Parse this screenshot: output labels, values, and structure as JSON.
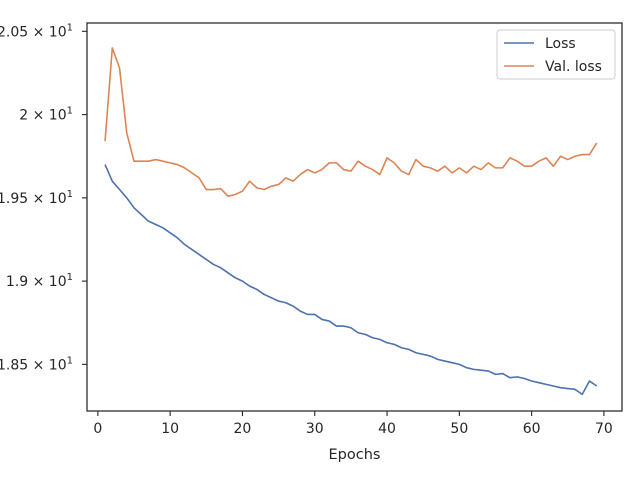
{
  "chart_data": {
    "type": "line",
    "title": "",
    "xlabel": "Epochs",
    "ylabel": "",
    "xlim": [
      -1.5,
      72.5
    ],
    "ylim": [
      18.22,
      20.55
    ],
    "x_ticks": [
      0,
      10,
      20,
      30,
      40,
      50,
      60,
      70
    ],
    "x_tick_labels": [
      "0",
      "10",
      "20",
      "30",
      "40",
      "50",
      "60",
      "70"
    ],
    "y_ticks": [
      18.5,
      19.0,
      19.5,
      20.0,
      20.5
    ],
    "y_tick_bases": [
      "1.85",
      "1.9",
      "1.95",
      "2",
      "2.05"
    ],
    "y_tick_exponent": "1",
    "y_tick_multiplier": "× 10",
    "grid": false,
    "legend_position": "upper right",
    "series": [
      {
        "name": "Loss",
        "color": "#4c72b0",
        "x": [
          1,
          2,
          3,
          4,
          5,
          6,
          7,
          8,
          9,
          10,
          11,
          12,
          13,
          14,
          15,
          16,
          17,
          18,
          19,
          20,
          21,
          22,
          23,
          24,
          25,
          26,
          27,
          28,
          29,
          30,
          31,
          32,
          33,
          34,
          35,
          36,
          37,
          38,
          39,
          40,
          41,
          42,
          43,
          44,
          45,
          46,
          47,
          48,
          49,
          50,
          51,
          52,
          53,
          54,
          55,
          56,
          57,
          58,
          59,
          60,
          61,
          62,
          63,
          64,
          65,
          66,
          67,
          68,
          69
        ],
        "values": [
          19.7,
          19.6,
          19.55,
          19.5,
          19.44,
          19.4,
          19.36,
          19.34,
          19.32,
          19.29,
          19.26,
          19.22,
          19.19,
          19.16,
          19.13,
          19.1,
          19.08,
          19.05,
          19.02,
          19.0,
          18.97,
          18.95,
          18.92,
          18.9,
          18.88,
          18.87,
          18.85,
          18.82,
          18.8,
          18.8,
          18.77,
          18.76,
          18.73,
          18.73,
          18.72,
          18.69,
          18.68,
          18.66,
          18.65,
          18.63,
          18.62,
          18.6,
          18.59,
          18.57,
          18.56,
          18.55,
          18.53,
          18.52,
          18.51,
          18.5,
          18.48,
          18.47,
          18.465,
          18.46,
          18.44,
          18.445,
          18.42,
          18.425,
          18.415,
          18.4,
          18.39,
          18.38,
          18.37,
          18.36,
          18.355,
          18.35,
          18.32,
          18.4,
          18.37
        ]
      },
      {
        "name": "Val. loss",
        "color": "#dd8452",
        "x": [
          1,
          2,
          3,
          4,
          5,
          6,
          7,
          8,
          9,
          10,
          11,
          12,
          13,
          14,
          15,
          16,
          17,
          18,
          19,
          20,
          21,
          22,
          23,
          24,
          25,
          26,
          27,
          28,
          29,
          30,
          31,
          32,
          33,
          34,
          35,
          36,
          37,
          38,
          39,
          40,
          41,
          42,
          43,
          44,
          45,
          46,
          47,
          48,
          49,
          50,
          51,
          52,
          53,
          54,
          55,
          56,
          57,
          58,
          59,
          60,
          61,
          62,
          63,
          64,
          65,
          66,
          67,
          68,
          69
        ],
        "values": [
          19.84,
          20.4,
          20.28,
          19.89,
          19.72,
          19.72,
          19.72,
          19.73,
          19.72,
          19.71,
          19.7,
          19.68,
          19.65,
          19.62,
          19.55,
          19.55,
          19.555,
          19.51,
          19.52,
          19.54,
          19.6,
          19.56,
          19.55,
          19.57,
          19.58,
          19.62,
          19.6,
          19.64,
          19.67,
          19.65,
          19.67,
          19.71,
          19.71,
          19.67,
          19.66,
          19.72,
          19.69,
          19.67,
          19.64,
          19.74,
          19.71,
          19.66,
          19.64,
          19.73,
          19.69,
          19.68,
          19.66,
          19.69,
          19.65,
          19.68,
          19.65,
          19.69,
          19.67,
          19.71,
          19.68,
          19.68,
          19.74,
          19.72,
          19.69,
          19.69,
          19.72,
          19.74,
          19.69,
          19.75,
          19.73,
          19.75,
          19.76,
          19.76,
          19.83
        ]
      }
    ]
  }
}
